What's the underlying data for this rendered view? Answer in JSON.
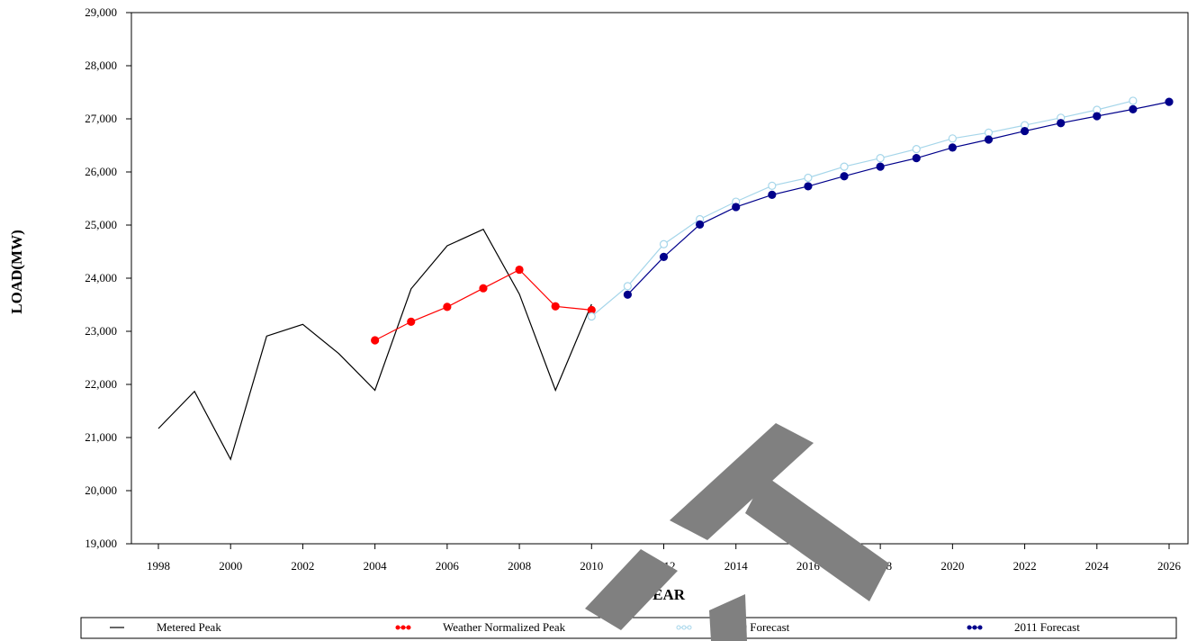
{
  "chart_data": {
    "type": "line",
    "title": "",
    "xlabel": "YEAR",
    "ylabel": "LOAD(MW)",
    "xlim": [
      1998,
      2026
    ],
    "ylim": [
      19000,
      29000
    ],
    "x_ticks": [
      "1998",
      "2000",
      "2002",
      "2004",
      "2006",
      "2008",
      "2010",
      "2012",
      "2014",
      "2016",
      "2018",
      "2020",
      "2022",
      "2024",
      "2026"
    ],
    "y_ticks": [
      "19,000",
      "20,000",
      "21,000",
      "22,000",
      "23,000",
      "24,000",
      "25,000",
      "26,000",
      "27,000",
      "28,000",
      "29,000"
    ],
    "grid": false,
    "legend_position": "bottom",
    "series": [
      {
        "name": "Metered Peak",
        "color": "#000000",
        "marker": "none",
        "x": [
          1998,
          1999,
          2000,
          2001,
          2002,
          2003,
          2004,
          2005,
          2006,
          2007,
          2008,
          2009,
          2010
        ],
        "y": [
          21170,
          21870,
          20590,
          22910,
          23130,
          22580,
          21890,
          23800,
          24610,
          24920,
          23700,
          21890,
          23510
        ]
      },
      {
        "name": "Weather Normalized Peak",
        "color": "#ff0000",
        "marker": "filled-circle",
        "x": [
          2004,
          2005,
          2006,
          2007,
          2008,
          2009,
          2010
        ],
        "y": [
          22830,
          23180,
          23460,
          23810,
          24160,
          23470,
          23400
        ]
      },
      {
        "name": "2010 Forecast",
        "color": "#a6d6ea",
        "marker": "open-circle",
        "x": [
          2010,
          2011,
          2012,
          2013,
          2014,
          2015,
          2016,
          2017,
          2018,
          2019,
          2020,
          2021,
          2022,
          2023,
          2024,
          2025
        ],
        "y": [
          23280,
          23850,
          24640,
          25110,
          25440,
          25740,
          25890,
          26100,
          26260,
          26430,
          26630,
          26740,
          26880,
          27020,
          27170,
          27340
        ]
      },
      {
        "name": "2011 Forecast",
        "color": "#00008b",
        "marker": "filled-circle",
        "x": [
          2011,
          2012,
          2013,
          2014,
          2015,
          2016,
          2017,
          2018,
          2019,
          2020,
          2021,
          2022,
          2023,
          2024,
          2025,
          2026
        ],
        "y": [
          23690,
          24400,
          25010,
          25340,
          25570,
          25730,
          25920,
          26100,
          26260,
          26460,
          26610,
          26770,
          26920,
          27050,
          27180,
          27320
        ]
      }
    ]
  }
}
